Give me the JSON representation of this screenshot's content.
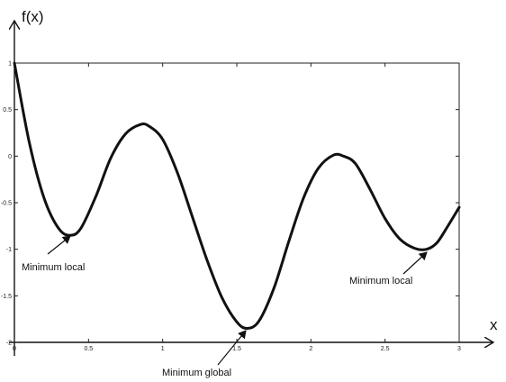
{
  "chart_data": {
    "type": "line",
    "title": "",
    "xlabel": "x",
    "ylabel": "f(x)",
    "xlim": [
      0,
      3
    ],
    "ylim": [
      -2,
      1
    ],
    "grid": false,
    "x_ticks": [
      0,
      0.5,
      1,
      1.5,
      2,
      2.5,
      3
    ],
    "x_tick_labels": [
      "0",
      "0.5",
      "1",
      "1.5",
      "2",
      "2.5",
      "3"
    ],
    "y_ticks": [
      1,
      0.5,
      0,
      -0.5,
      -1,
      -1.5,
      -2
    ],
    "y_tick_labels": [
      "1",
      "0.5",
      "0",
      "-0.5",
      "-1",
      "-1.5",
      "-2"
    ],
    "series": [
      {
        "x": [
          0,
          0.1,
          0.2,
          0.3,
          0.38,
          0.45,
          0.55,
          0.65,
          0.75,
          0.85,
          0.91,
          1.0,
          1.1,
          1.2,
          1.3,
          1.4,
          1.5,
          1.57,
          1.65,
          1.75,
          1.85,
          1.95,
          2.05,
          2.15,
          2.22,
          2.3,
          2.4,
          2.5,
          2.6,
          2.7,
          2.78,
          2.85,
          2.92,
          3.0
        ],
        "y": [
          1.0,
          0.15,
          -0.45,
          -0.78,
          -0.85,
          -0.77,
          -0.43,
          -0.02,
          0.24,
          0.34,
          0.32,
          0.18,
          -0.18,
          -0.65,
          -1.12,
          -1.52,
          -1.78,
          -1.85,
          -1.77,
          -1.42,
          -0.92,
          -0.45,
          -0.13,
          0.01,
          0.0,
          -0.08,
          -0.36,
          -0.67,
          -0.89,
          -0.99,
          -1.0,
          -0.93,
          -0.76,
          -0.55
        ]
      }
    ],
    "annotations": [
      {
        "text": "Minimum local",
        "x": 0.38,
        "y": -0.85
      },
      {
        "text": "Minimum global",
        "x": 1.57,
        "y": -1.85
      },
      {
        "text": "Minimum local",
        "x": 2.78,
        "y": -1.0
      }
    ]
  }
}
